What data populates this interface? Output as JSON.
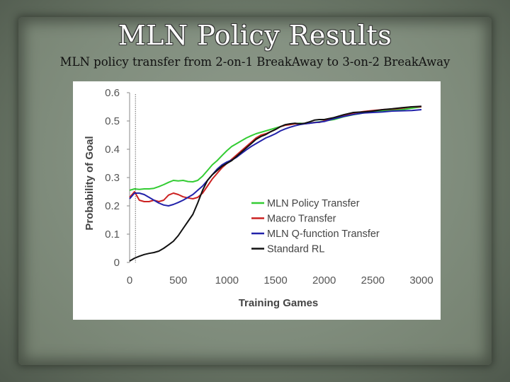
{
  "slide": {
    "title": "MLN Policy Results",
    "subtitle": "MLN policy transfer from 2-on-1 BreakAway to 3-on-2 BreakAway"
  },
  "chart_data": {
    "type": "line",
    "title": "",
    "xlabel": "Training Games",
    "ylabel": "Probability of Goal",
    "xlim": [
      0,
      3000
    ],
    "ylim": [
      0,
      0.6
    ],
    "xticks": [
      "0",
      "500",
      "1000",
      "1500",
      "2000",
      "2500",
      "3000"
    ],
    "yticks": [
      "0",
      "0.1",
      "0.2",
      "0.3",
      "0.4",
      "0.5",
      "0.6"
    ],
    "grid": false,
    "legend_position": "bottom-right",
    "vline_x": 60,
    "series": [
      {
        "name": "MLN Policy Transfer",
        "color": "#33cc33",
        "x": [
          0,
          50,
          100,
          150,
          200,
          250,
          300,
          350,
          400,
          450,
          500,
          550,
          600,
          650,
          700,
          750,
          800,
          850,
          900,
          950,
          1000,
          1050,
          1100,
          1150,
          1200,
          1250,
          1300,
          1350,
          1400,
          1450,
          1500,
          1550,
          1600,
          1650,
          1700,
          1750,
          1800,
          1850,
          1900,
          1950,
          2000,
          2100,
          2200,
          2300,
          2400,
          2500,
          2600,
          2700,
          2800,
          2900,
          3000
        ],
        "values": [
          0.255,
          0.26,
          0.258,
          0.26,
          0.26,
          0.262,
          0.268,
          0.275,
          0.283,
          0.29,
          0.288,
          0.29,
          0.286,
          0.285,
          0.29,
          0.305,
          0.325,
          0.345,
          0.36,
          0.378,
          0.395,
          0.41,
          0.42,
          0.43,
          0.44,
          0.448,
          0.455,
          0.46,
          0.465,
          0.47,
          0.475,
          0.48,
          0.485,
          0.488,
          0.49,
          0.492,
          0.49,
          0.493,
          0.495,
          0.497,
          0.5,
          0.505,
          0.515,
          0.522,
          0.528,
          0.532,
          0.536,
          0.538,
          0.54,
          0.545,
          0.55
        ]
      },
      {
        "name": "Macro Transfer",
        "color": "#cc2222",
        "x": [
          0,
          50,
          100,
          150,
          200,
          250,
          300,
          350,
          400,
          450,
          500,
          550,
          600,
          650,
          700,
          750,
          800,
          850,
          900,
          950,
          1000,
          1050,
          1100,
          1150,
          1200,
          1250,
          1300,
          1350,
          1400,
          1450,
          1500,
          1550,
          1600,
          1650,
          1700,
          1750,
          1800,
          1850,
          1900,
          1950,
          2000,
          2100,
          2200,
          2300,
          2400,
          2500,
          2600,
          2700,
          2800,
          2900,
          3000
        ],
        "values": [
          0.23,
          0.25,
          0.22,
          0.215,
          0.215,
          0.22,
          0.215,
          0.22,
          0.238,
          0.245,
          0.24,
          0.232,
          0.228,
          0.225,
          0.23,
          0.245,
          0.27,
          0.295,
          0.315,
          0.335,
          0.35,
          0.365,
          0.38,
          0.395,
          0.41,
          0.425,
          0.44,
          0.45,
          0.455,
          0.462,
          0.47,
          0.48,
          0.485,
          0.487,
          0.49,
          0.49,
          0.49,
          0.492,
          0.495,
          0.495,
          0.5,
          0.51,
          0.52,
          0.528,
          0.533,
          0.537,
          0.54,
          0.542,
          0.545,
          0.55,
          0.55
        ]
      },
      {
        "name": "MLN Q-function Transfer",
        "color": "#2222aa",
        "x": [
          0,
          50,
          100,
          150,
          200,
          250,
          300,
          350,
          400,
          450,
          500,
          550,
          600,
          650,
          700,
          750,
          800,
          850,
          900,
          950,
          1000,
          1050,
          1100,
          1150,
          1200,
          1250,
          1300,
          1350,
          1400,
          1450,
          1500,
          1550,
          1600,
          1650,
          1700,
          1750,
          1800,
          1850,
          1900,
          1950,
          2000,
          2100,
          2200,
          2300,
          2400,
          2500,
          2600,
          2700,
          2800,
          2900,
          3000
        ],
        "values": [
          0.225,
          0.245,
          0.245,
          0.24,
          0.23,
          0.22,
          0.21,
          0.203,
          0.2,
          0.205,
          0.212,
          0.22,
          0.23,
          0.24,
          0.255,
          0.27,
          0.29,
          0.31,
          0.33,
          0.345,
          0.355,
          0.362,
          0.372,
          0.385,
          0.398,
          0.41,
          0.42,
          0.43,
          0.44,
          0.447,
          0.455,
          0.465,
          0.472,
          0.478,
          0.483,
          0.487,
          0.49,
          0.492,
          0.494,
          0.496,
          0.498,
          0.508,
          0.516,
          0.523,
          0.528,
          0.53,
          0.532,
          0.535,
          0.536,
          0.537,
          0.54
        ]
      },
      {
        "name": "Standard RL",
        "color": "#111111",
        "x": [
          0,
          50,
          100,
          150,
          200,
          250,
          300,
          350,
          400,
          450,
          500,
          550,
          600,
          650,
          700,
          750,
          800,
          850,
          900,
          950,
          1000,
          1050,
          1100,
          1150,
          1200,
          1250,
          1300,
          1350,
          1400,
          1450,
          1500,
          1550,
          1600,
          1650,
          1700,
          1750,
          1800,
          1850,
          1900,
          1950,
          2000,
          2100,
          2200,
          2300,
          2400,
          2500,
          2600,
          2700,
          2800,
          2900,
          3000
        ],
        "values": [
          0.005,
          0.015,
          0.022,
          0.028,
          0.032,
          0.035,
          0.04,
          0.05,
          0.062,
          0.075,
          0.095,
          0.12,
          0.145,
          0.17,
          0.21,
          0.255,
          0.29,
          0.31,
          0.325,
          0.34,
          0.35,
          0.36,
          0.375,
          0.39,
          0.405,
          0.42,
          0.435,
          0.445,
          0.452,
          0.462,
          0.47,
          0.48,
          0.487,
          0.49,
          0.492,
          0.49,
          0.492,
          0.497,
          0.503,
          0.505,
          0.505,
          0.512,
          0.522,
          0.53,
          0.532,
          0.535,
          0.54,
          0.543,
          0.547,
          0.55,
          0.552
        ]
      }
    ]
  }
}
